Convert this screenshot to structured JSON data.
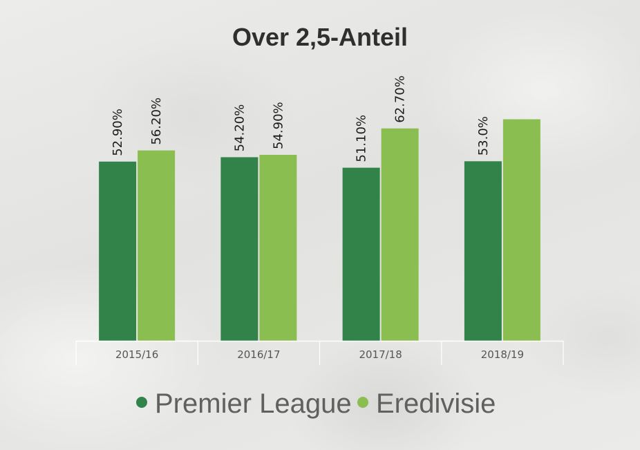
{
  "chart_data": {
    "type": "bar",
    "title": "Over 2,5-Anteil",
    "categories": [
      "2015/16",
      "2016/17",
      "2017/18",
      "2018/19"
    ],
    "series": [
      {
        "name": "Premier League",
        "color": "#31834a",
        "values": [
          52.9,
          54.2,
          51.1,
          53.0
        ],
        "labels": [
          "52.90%",
          "54.20%",
          "51.10%",
          "53.0%"
        ]
      },
      {
        "name": "Eredivisie",
        "color": "#8abe50",
        "values": [
          56.2,
          54.9,
          62.7,
          65.4
        ],
        "labels": [
          "56.20%",
          "54.90%",
          "62.70%",
          ""
        ]
      }
    ],
    "ylim": [
      0,
      100
    ],
    "grid": false,
    "legend": "bottom-center"
  }
}
